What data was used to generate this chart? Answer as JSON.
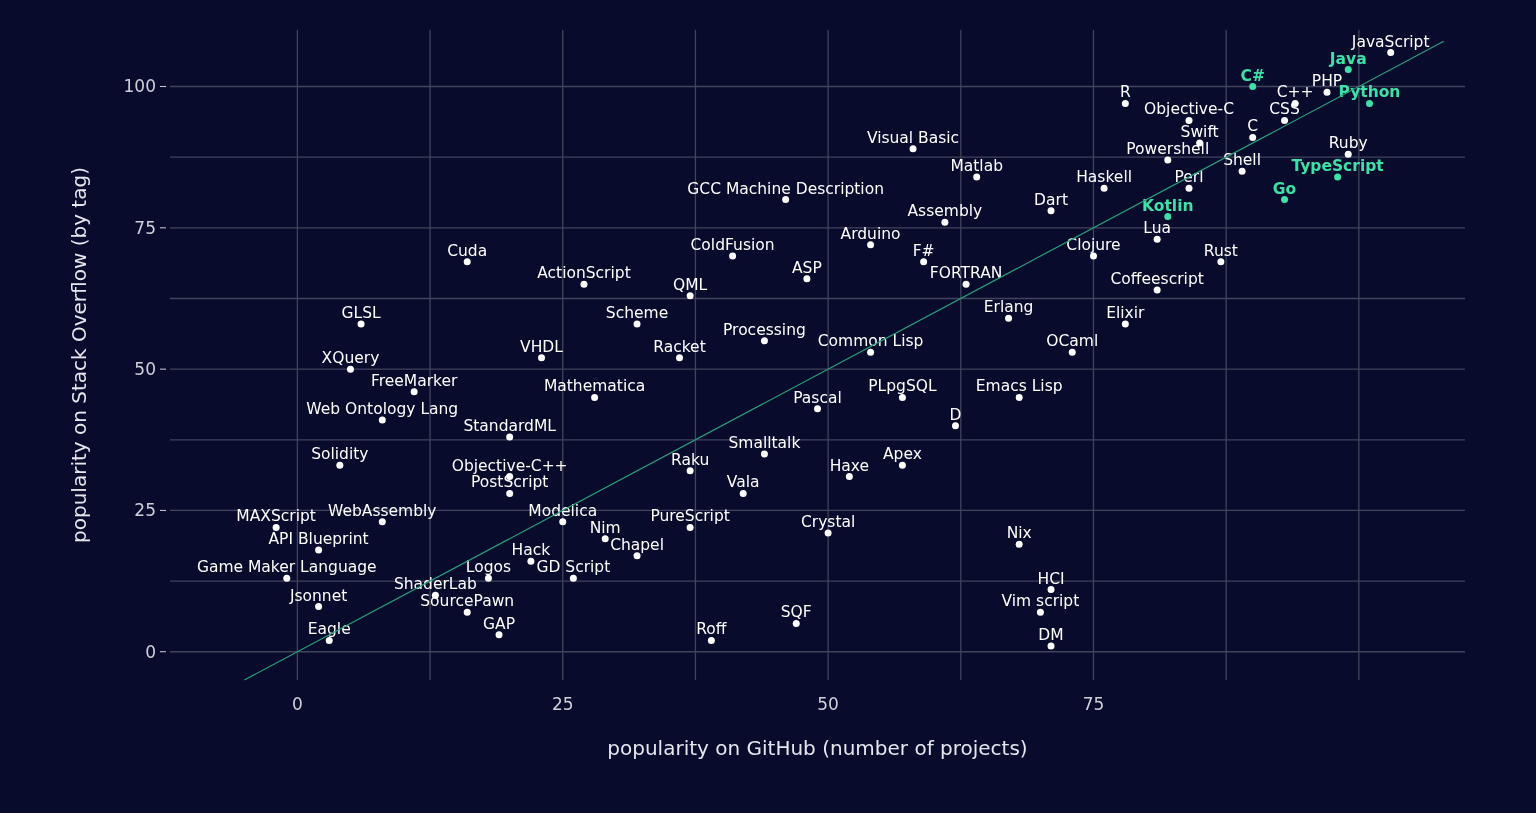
{
  "chart_data": {
    "type": "scatter",
    "xlabel": "popularity on GitHub (number of projects)",
    "ylabel": "popularity on Stack Overflow (by tag)",
    "xlim": [
      -12,
      110
    ],
    "ylim": [
      -5,
      110
    ],
    "xticks": [
      0,
      {
        "value": 12.5,
        "label": null
      },
      25,
      {
        "value": 37.5,
        "label": null
      },
      50,
      {
        "value": 62.5,
        "label": null
      },
      75,
      {
        "value": 87.5,
        "label": null
      },
      {
        "value": 100,
        "label": null
      }
    ],
    "yticks": [
      0,
      {
        "value": 12.5,
        "label": null
      },
      25,
      {
        "value": 37.5,
        "label": null
      },
      50,
      {
        "value": 62.5,
        "label": null
      },
      75,
      {
        "value": 87.5,
        "label": null
      },
      100
    ],
    "grid": true,
    "marker": "circle",
    "series": [
      {
        "color": "#ffffff",
        "x": [
          103,
          97,
          78,
          94,
          84,
          93,
          90,
          85,
          58,
          99,
          82,
          89,
          64,
          84,
          76,
          46,
          71,
          61,
          81,
          54,
          75,
          41,
          16,
          59,
          87,
          48,
          27,
          63,
          81,
          37,
          67,
          6,
          32,
          78,
          44,
          54,
          73,
          23,
          36,
          5,
          11,
          28,
          68,
          57,
          49,
          8,
          62,
          20,
          44,
          57,
          4,
          37,
          52,
          20,
          20,
          42,
          -2,
          8,
          25,
          37,
          50,
          29,
          68,
          2,
          22,
          32,
          18,
          26,
          -1,
          13,
          71,
          2,
          16,
          70,
          47,
          19,
          39,
          3,
          71
        ],
        "values": [
          106,
          99,
          97,
          97,
          94,
          94,
          91,
          90,
          89,
          88,
          87,
          85,
          84,
          82,
          82,
          80,
          78,
          76,
          73,
          72,
          70,
          70,
          69,
          69,
          69,
          66,
          65,
          65,
          64,
          63,
          59,
          58,
          58,
          58,
          55,
          53,
          53,
          52,
          52,
          50,
          46,
          45,
          45,
          45,
          43,
          41,
          40,
          38,
          35,
          33,
          33,
          32,
          31,
          31,
          28,
          28,
          22,
          23,
          23,
          22,
          21,
          20,
          19,
          18,
          16,
          17,
          13,
          13,
          13,
          10,
          11,
          8,
          7,
          7,
          5,
          3,
          2,
          2,
          1
        ],
        "value_labels": [
          "JavaScript",
          "PHP",
          "R",
          "C++",
          "Objective-C",
          "CSS",
          "C",
          "Swift",
          "Visual Basic",
          "Ruby",
          "Powershell",
          "Shell",
          "Matlab",
          "Perl",
          "Haskell",
          "GCC Machine Description",
          "Dart",
          "Assembly",
          "Lua",
          "Arduino",
          "Clojure",
          "ColdFusion",
          "Cuda",
          "F#",
          "Rust",
          "ASP",
          "ActionScript",
          "FORTRAN",
          "Coffeescript",
          "QML",
          "Erlang",
          "GLSL",
          "Scheme",
          "Elixir",
          "Processing",
          "Common Lisp",
          "OCaml",
          "VHDL",
          "Racket",
          "XQuery",
          "FreeMarker",
          "Mathematica",
          "Emacs Lisp",
          "PLpgSQL",
          "Pascal",
          "Web Ontology Lang",
          "D",
          "StandardML",
          "Smalltalk",
          "Apex",
          "Solidity",
          "Raku",
          "Haxe",
          "Objective-C++",
          "PostScript",
          "Vala",
          "MAXScript",
          "WebAssembly",
          "Modelica",
          "PureScript",
          "Crystal",
          "Nim",
          "Nix",
          "API Blueprint",
          "Hack",
          "Chapel",
          "Logos",
          "GD Script",
          "Game Maker Language",
          "ShaderLab",
          "HCI",
          "Jsonnet",
          "SourcePawn",
          "Vim script",
          "SQF",
          "GAP",
          "Roff",
          "Eagle",
          "DM"
        ]
      },
      {
        "color": "#3ee0a8",
        "x": [
          99,
          90,
          101,
          98,
          93,
          82
        ],
        "values": [
          103,
          100,
          97,
          84,
          80,
          77
        ],
        "value_labels": [
          "Java",
          "C#",
          "Python",
          "TypeScript",
          "Go",
          "Kotlin"
        ]
      },
      {
        "type": "line",
        "marker": "none",
        "color": "#2a9d78",
        "x": [
          -5,
          108
        ],
        "values": [
          -5,
          108
        ]
      }
    ]
  }
}
